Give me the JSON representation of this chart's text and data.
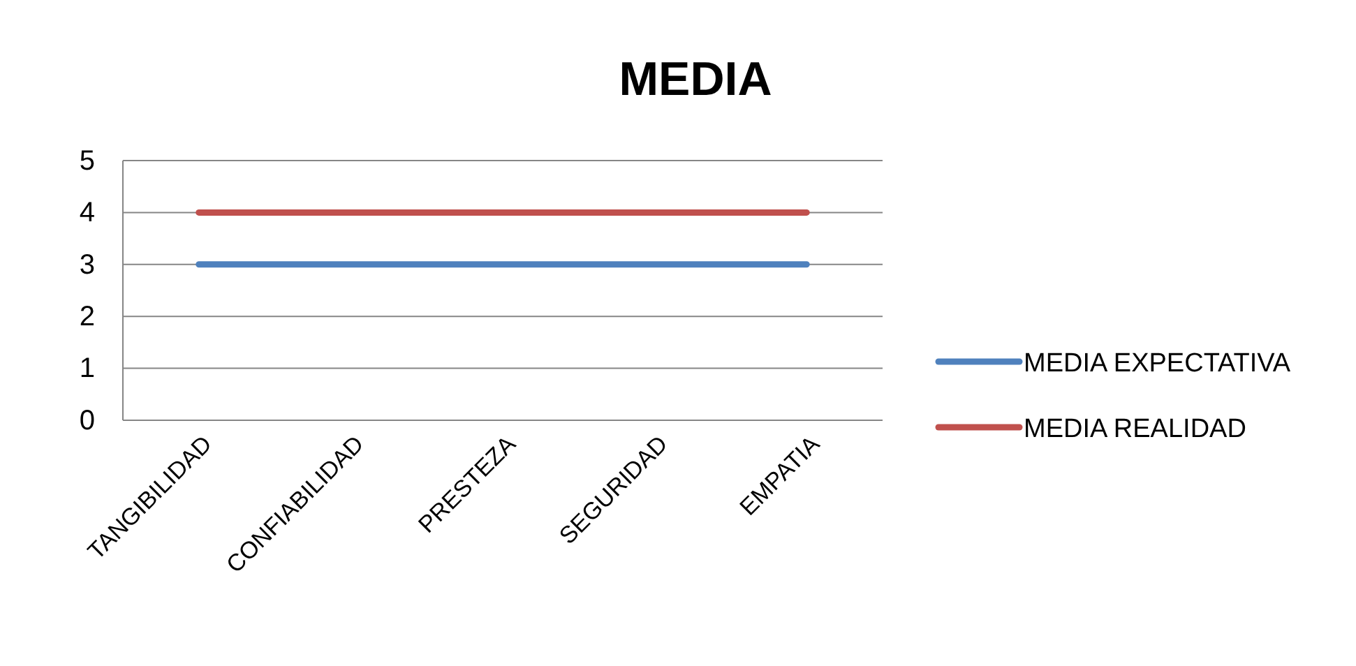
{
  "chart_data": {
    "type": "line",
    "title": "MEDIA",
    "categories": [
      "TANGIBILIDAD",
      "CONFIABILIDAD",
      "PRESTEZA",
      "SEGURIDAD",
      "EMPATIA"
    ],
    "series": [
      {
        "name": "MEDIA EXPECTATIVA",
        "color": "#4f81bd",
        "values": [
          3,
          3,
          3,
          3,
          3
        ]
      },
      {
        "name": "MEDIA REALIDAD",
        "color": "#c0504d",
        "values": [
          4,
          4,
          4,
          4,
          4
        ]
      }
    ],
    "ylim": [
      0,
      5
    ],
    "yticks": [
      0,
      1,
      2,
      3,
      4,
      5
    ],
    "grid": "y",
    "legend": "right",
    "marker": "none",
    "line_style": "solid"
  }
}
